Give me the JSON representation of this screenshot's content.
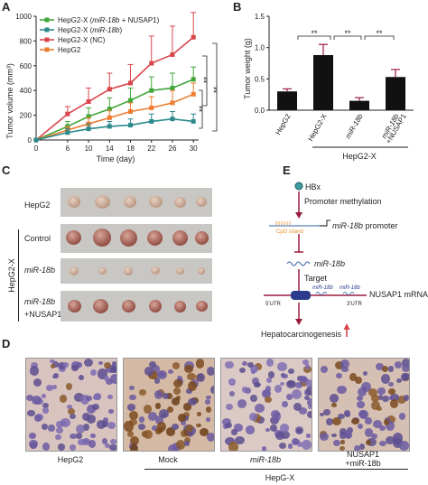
{
  "panels": {
    "a": "A",
    "b": "B",
    "c": "C",
    "d": "D",
    "e": "E"
  },
  "panel_a": {
    "ylabel": "Tumor volume (mm³)",
    "xlabel": "Time (day)",
    "legend": [
      {
        "pre": "HepG2-X (",
        "it": "miR-18b",
        "post": " + NUSAP1)",
        "color": "#41a63a"
      },
      {
        "pre": "HepG2-X (",
        "it": "miR-18b",
        "post": ")",
        "color": "#2c8a8c"
      },
      {
        "pre": "HepG2-X (NC)",
        "it": "",
        "post": "",
        "color": "#d9454b"
      },
      {
        "pre": "HepG2",
        "it": "",
        "post": "",
        "color": "#ed7d31"
      }
    ],
    "sig": [
      "**",
      "**",
      "**"
    ]
  },
  "panel_b": {
    "ylabel": "Tumor weight (g)",
    "sig": [
      "**",
      "**",
      "**"
    ],
    "group_label": "HepG2-X",
    "xticks": [
      {
        "t1": "HepG2",
        "t2": "",
        "it1": false
      },
      {
        "t1": "HepG2-X",
        "t2": "",
        "it1": false
      },
      {
        "t1": "miR-18b",
        "t2": "",
        "it1": true
      },
      {
        "t1": "miR-18b",
        "t2": "+NUSAP1",
        "it1": true
      }
    ]
  },
  "chart_data": [
    {
      "type": "line",
      "x": [
        0,
        6,
        10,
        14,
        18,
        22,
        26,
        30
      ],
      "xlim": [
        0,
        31
      ],
      "ylim": [
        0,
        1000
      ],
      "xticks": [
        0,
        6,
        10,
        14,
        18,
        22,
        26,
        30
      ],
      "yticks": [
        0,
        200,
        400,
        600,
        800,
        1000
      ],
      "xlabel": "Time (day)",
      "ylabel": "Tumor volume (mm³)",
      "series": [
        {
          "name": "HepG2-X (NC)",
          "color": "#d9454b",
          "values": [
            0,
            210,
            310,
            410,
            460,
            620,
            690,
            830
          ],
          "err": [
            0,
            60,
            110,
            130,
            150,
            220,
            230,
            200
          ]
        },
        {
          "name": "HepG2-X (miR-18b + NUSAP1)",
          "color": "#41a63a",
          "values": [
            0,
            110,
            190,
            250,
            320,
            400,
            420,
            490
          ],
          "err": [
            0,
            40,
            70,
            90,
            100,
            110,
            120,
            100
          ]
        },
        {
          "name": "HepG2",
          "color": "#ed7d31",
          "values": [
            0,
            80,
            130,
            180,
            230,
            260,
            300,
            370
          ],
          "err": [
            0,
            30,
            50,
            60,
            70,
            90,
            100,
            90
          ]
        },
        {
          "name": "HepG2-X (miR-18b)",
          "color": "#2c8a8c",
          "values": [
            0,
            60,
            90,
            110,
            120,
            150,
            170,
            150
          ],
          "err": [
            0,
            30,
            40,
            40,
            50,
            60,
            60,
            60
          ]
        }
      ],
      "legend": "top-left"
    },
    {
      "type": "bar",
      "categories": [
        "HepG2",
        "HepG2-X",
        "miR-18b",
        "miR-18b +NUSAP1"
      ],
      "values": [
        0.3,
        0.88,
        0.15,
        0.53
      ],
      "err": [
        0.04,
        0.17,
        0.05,
        0.12
      ],
      "ylim": [
        0,
        1.5
      ],
      "yticks": [
        0.0,
        0.5,
        1.0,
        1.5
      ],
      "ylabel": "Tumor weight (g)"
    }
  ],
  "panel_c": {
    "side_label": "HepG2-X",
    "rows": [
      {
        "t1": "HepG2",
        "t2": "",
        "it": false
      },
      {
        "t1": "Control",
        "t2": "",
        "it": false
      },
      {
        "t1": "miR-18b",
        "t2": "",
        "it": true
      },
      {
        "t1": "miR-18b",
        "t2": "+NUSAP1",
        "it": true
      }
    ]
  },
  "panel_e": {
    "hbx": "HBx",
    "promoter_methylation": "Promoter methylation",
    "cpg": "CpG island",
    "promoter_it": "miR-18b",
    "promoter_rest": " promoter",
    "mir": "miR-18b",
    "target": "Target",
    "utr5": "5'UTR",
    "utr3": "3'UTR",
    "site_a": "miR-18b",
    "site_b": "miR-18b",
    "mrna": "NUSAP1 mRNA",
    "outcome": "Hepatocarcinogenesis"
  },
  "panel_d": {
    "labels": [
      {
        "t1": "HepG2",
        "t2": "",
        "it": false
      },
      {
        "t1": "Mock",
        "t2": "",
        "it": false
      },
      {
        "t1": "miR-18b",
        "t2": "",
        "it": true
      },
      {
        "t1": "NUSAP1",
        "t2": "+miR-18b",
        "it": false
      }
    ],
    "group_label": "HepG-X"
  }
}
